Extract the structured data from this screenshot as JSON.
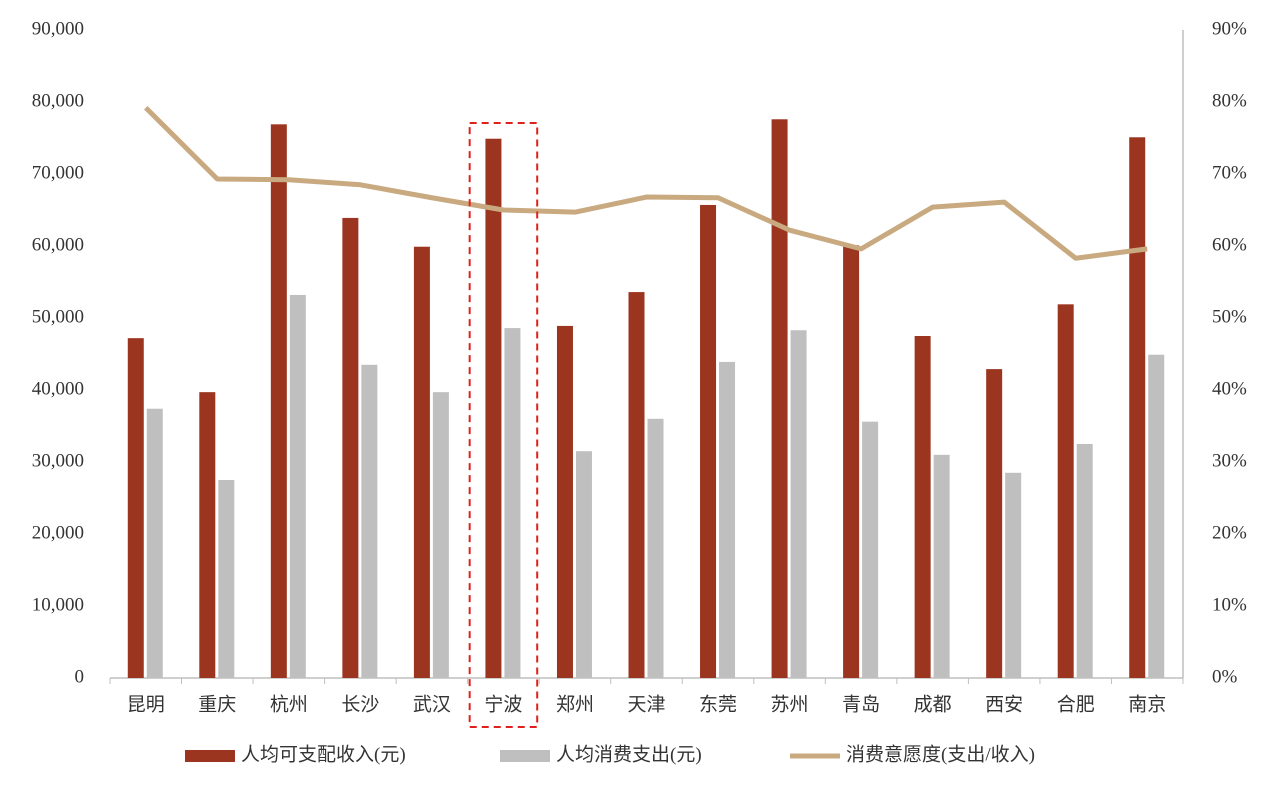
{
  "chart_data": {
    "type": "bar-line",
    "categories": [
      "昆明",
      "重庆",
      "杭州",
      "长沙",
      "武汉",
      "宁波",
      "郑州",
      "天津",
      "东莞",
      "苏州",
      "青岛",
      "成都",
      "西安",
      "合肥",
      "南京"
    ],
    "series": [
      {
        "name": "人均可支配收入(元)",
        "type": "bar",
        "color": "#9b3520",
        "values": [
          47200,
          39700,
          76900,
          63900,
          59900,
          74900,
          48900,
          53600,
          65700,
          77600,
          60100,
          47500,
          42900,
          51900,
          75100
        ]
      },
      {
        "name": "人均消费支出(元)",
        "type": "bar",
        "color": "#bfbfbf",
        "values": [
          37400,
          27500,
          53200,
          43500,
          39700,
          48600,
          31500,
          36000,
          43900,
          48300,
          35600,
          31000,
          28500,
          32500,
          44900
        ]
      },
      {
        "name": "消费意愿度(支出/收入)",
        "type": "line",
        "axis": "y2",
        "color": "#c9aa80",
        "values": [
          79.2,
          69.3,
          69.2,
          68.5,
          66.7,
          65.0,
          64.7,
          66.8,
          66.7,
          62.2,
          59.6,
          65.4,
          66.1,
          58.3,
          59.6
        ]
      }
    ],
    "ylim": [
      0,
      90000
    ],
    "yticks": [
      {
        "value": 0,
        "label": "0"
      },
      {
        "value": 10000,
        "label": "10,000"
      },
      {
        "value": 20000,
        "label": "20,000"
      },
      {
        "value": 30000,
        "label": "30,000"
      },
      {
        "value": 40000,
        "label": "40,000"
      },
      {
        "value": 50000,
        "label": "50,000"
      },
      {
        "value": 60000,
        "label": "60,000"
      },
      {
        "value": 70000,
        "label": "70,000"
      },
      {
        "value": 80000,
        "label": "80,000"
      },
      {
        "value": 90000,
        "label": "90,000"
      }
    ],
    "y2lim": [
      0,
      90
    ],
    "y2ticks": [
      {
        "value": 0,
        "label": "0%"
      },
      {
        "value": 10,
        "label": "10%"
      },
      {
        "value": 20,
        "label": "20%"
      },
      {
        "value": 30,
        "label": "30%"
      },
      {
        "value": 40,
        "label": "40%"
      },
      {
        "value": 50,
        "label": "50%"
      },
      {
        "value": 60,
        "label": "60%"
      },
      {
        "value": 70,
        "label": "70%"
      },
      {
        "value": 80,
        "label": "80%"
      },
      {
        "value": 90,
        "label": "90%"
      }
    ],
    "legend": "bottom"
  }
}
